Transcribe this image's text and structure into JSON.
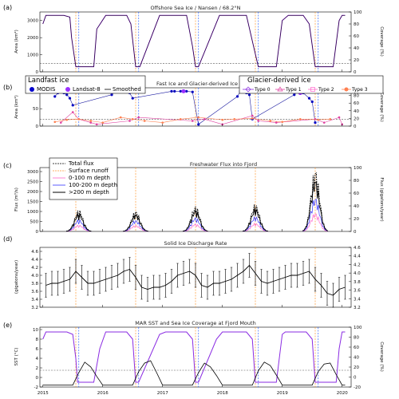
{
  "chart_data": [
    {
      "label": "(a)",
      "title": "Offshore Sea Ice / Nansen / 68.2°N",
      "type": "line",
      "ylabel_left": "Area (km²)",
      "ylabel_right": "Coverage (%)",
      "yticks_left": [
        "0",
        "1000",
        "2000",
        "3000"
      ],
      "yticks_right": [
        "0",
        "20",
        "40",
        "60",
        "80",
        "100"
      ],
      "ylim": [
        0,
        3500
      ],
      "threshold_line": 500,
      "series": [
        {
          "color": "#6a0dad",
          "x": [
            2015.0,
            2015.05,
            2015.35,
            2015.45,
            2015.48,
            2015.55,
            2015.85,
            2015.9,
            2016.05,
            2016.4,
            2016.47,
            2016.55,
            2016.62,
            2016.95,
            2017.05,
            2017.4,
            2017.5,
            2017.55,
            2017.6,
            2017.95,
            2018.05,
            2018.4,
            2018.52,
            2018.6,
            2018.9,
            2019.0,
            2019.1,
            2019.35,
            2019.45,
            2019.55,
            2019.85,
            2019.95,
            2020.0,
            2020.05
          ],
          "values": [
            2800,
            3300,
            3300,
            3200,
            2000,
            300,
            300,
            2500,
            3300,
            3300,
            2800,
            300,
            300,
            3300,
            3300,
            3300,
            1500,
            300,
            300,
            3300,
            3300,
            3300,
            1500,
            300,
            300,
            3000,
            3300,
            3300,
            2800,
            300,
            300,
            3000,
            3300,
            3300
          ]
        }
      ]
    },
    {
      "label": "(b)",
      "title": "Fast Ice and Glacier-derived Ice",
      "type": "scatter",
      "ylabel_left": "Area (km²)",
      "ylabel_right": "Coverage (%)",
      "yticks_left": [
        "0",
        "50",
        "100"
      ],
      "yticks_right": [
        "0",
        "20",
        "40",
        "60",
        "80",
        "100"
      ],
      "ylim": [
        0,
        110
      ],
      "legend_landfast": {
        "title": "Landfast ice",
        "items": [
          "MODIS",
          "Landsat-8",
          "Smoothed"
        ]
      },
      "legend_glacier": {
        "title": "Glacier-derived ice",
        "items": [
          "Type 0",
          "Type 1",
          "Type 2",
          "Type 3"
        ]
      },
      "series": [
        {
          "name": "MODIS",
          "color": "#0000cc",
          "x": [
            2015.2,
            2015.25,
            2015.3,
            2015.35,
            2015.4,
            2015.45,
            2015.5,
            2016.15,
            2016.2,
            2016.3,
            2016.35,
            2016.45,
            2016.5,
            2017.15,
            2017.2,
            2017.3,
            2017.4,
            2017.5,
            2017.6,
            2018.25,
            2018.3,
            2018.4,
            2018.45,
            2018.5,
            2019.2,
            2019.25,
            2019.35,
            2019.45,
            2019.5,
            2019.55
          ],
          "values": [
            85,
            95,
            100,
            95,
            90,
            80,
            60,
            90,
            98,
            100,
            98,
            95,
            80,
            100,
            100,
            100,
            100,
            98,
            5,
            85,
            100,
            95,
            90,
            20,
            90,
            98,
            95,
            80,
            70,
            10
          ]
        },
        {
          "name": "Landsat-8",
          "color": "#9b30ff",
          "x": [
            2015.3,
            2016.3,
            2017.35,
            2018.35,
            2019.3
          ],
          "values": [
            100,
            100,
            100,
            100,
            95
          ]
        },
        {
          "name": "Type 1",
          "color": "#e040a0",
          "x": [
            2015.3,
            2015.5,
            2015.6,
            2015.8,
            2015.9,
            2016.45,
            2016.6,
            2017.5,
            2017.7,
            2018.0,
            2018.5,
            2018.6,
            2018.9,
            2019.55,
            2019.7,
            2019.95,
            2020.0
          ],
          "values": [
            10,
            40,
            20,
            10,
            5,
            15,
            25,
            15,
            20,
            5,
            30,
            15,
            10,
            20,
            10,
            25,
            5
          ]
        },
        {
          "name": "Type 3",
          "color": "#ff7f50",
          "x": [
            2015.2,
            2015.4,
            2015.6,
            2015.8,
            2016.0,
            2016.3,
            2016.5,
            2016.7,
            2017.0,
            2017.3,
            2017.6,
            2018.0,
            2018.2,
            2018.5,
            2018.8,
            2019.0,
            2019.3,
            2019.6,
            2019.8
          ],
          "values": [
            12,
            18,
            20,
            15,
            10,
            25,
            20,
            15,
            10,
            20,
            25,
            18,
            20,
            22,
            15,
            12,
            20,
            18,
            20
          ]
        }
      ]
    },
    {
      "label": "(c)",
      "title": "Freshwater Flux into Fjord",
      "type": "area",
      "ylabel_left": "Flux (m³/s)",
      "ylabel_right": "Flux (gigatons/year)",
      "yticks_left": [
        "0",
        "500",
        "1000",
        "1500",
        "2000",
        "2500",
        "3000"
      ],
      "yticks_right": [
        "0",
        "20",
        "40",
        "60",
        "80",
        "100"
      ],
      "ylim": [
        0,
        3200
      ],
      "legend": [
        "Total flux",
        "Surface runoff",
        "0-100 m depth",
        "100-200 m depth",
        ">200 m depth"
      ],
      "peaks": [
        {
          "center": 2015.6,
          "width": 0.07,
          "height": 1100
        },
        {
          "center": 2016.55,
          "width": 0.07,
          "height": 1050
        },
        {
          "center": 2017.55,
          "width": 0.07,
          "height": 1300
        },
        {
          "center": 2018.55,
          "width": 0.07,
          "height": 1400
        },
        {
          "center": 2019.55,
          "width": 0.07,
          "height": 3200
        }
      ]
    },
    {
      "label": "(d)",
      "title": "Solid Ice Discharge Rate",
      "type": "line",
      "ylabel_left": "(gigatons/year)",
      "yticks_left": [
        "3.2",
        "3.4",
        "3.6",
        "3.8",
        "4.0",
        "4.2",
        "4.4",
        "4.6"
      ],
      "yticks_right": [
        "3.2",
        "3.4",
        "3.6",
        "3.8",
        "4.0",
        "4.2",
        "4.4",
        "4.6"
      ],
      "ylim": [
        3.2,
        4.7
      ],
      "series": [
        {
          "color": "#000000",
          "error": 0.3,
          "x": [
            2015.05,
            2015.15,
            2015.25,
            2015.35,
            2015.45,
            2015.55,
            2015.65,
            2015.75,
            2015.85,
            2015.95,
            2016.05,
            2016.15,
            2016.25,
            2016.35,
            2016.45,
            2016.55,
            2016.65,
            2016.75,
            2016.85,
            2016.95,
            2017.05,
            2017.15,
            2017.25,
            2017.35,
            2017.45,
            2017.55,
            2017.65,
            2017.75,
            2017.85,
            2017.95,
            2018.05,
            2018.15,
            2018.25,
            2018.35,
            2018.45,
            2018.55,
            2018.65,
            2018.75,
            2018.85,
            2018.95,
            2019.05,
            2019.15,
            2019.25,
            2019.35,
            2019.45,
            2019.55,
            2019.65,
            2019.75,
            2019.85,
            2019.95,
            2020.05
          ],
          "values": [
            3.75,
            3.8,
            3.8,
            3.85,
            3.9,
            4.1,
            3.95,
            3.8,
            3.8,
            3.85,
            3.9,
            3.95,
            4.0,
            4.1,
            4.15,
            3.95,
            3.7,
            3.65,
            3.7,
            3.7,
            3.75,
            3.85,
            4.0,
            4.05,
            4.1,
            4.0,
            3.75,
            3.7,
            3.8,
            3.8,
            3.85,
            3.9,
            4.0,
            4.1,
            4.25,
            4.05,
            3.85,
            3.8,
            3.85,
            3.9,
            3.95,
            4.0,
            4.0,
            4.05,
            4.1,
            3.9,
            3.75,
            3.55,
            3.5,
            3.65,
            3.7
          ]
        }
      ]
    },
    {
      "label": "(e)",
      "title": "MAR SST and Sea Ice Coverage at Fjord Mouth",
      "type": "line",
      "ylabel_left": "SST (°C)",
      "ylabel_right": "Coverage (%)",
      "yticks_left": [
        "-2",
        "0",
        "2",
        "4",
        "6",
        "8",
        "10"
      ],
      "yticks_right": [
        "-20",
        "0",
        "20",
        "40",
        "60",
        "80",
        "100"
      ],
      "ylim": [
        -2,
        10.5
      ],
      "series": [
        {
          "name": "Sea ice coverage",
          "color": "#8a2be2",
          "x": [
            2015.0,
            2015.05,
            2015.4,
            2015.5,
            2015.55,
            2015.58,
            2015.85,
            2015.95,
            2016.05,
            2016.4,
            2016.5,
            2016.55,
            2016.6,
            2016.95,
            2017.05,
            2017.4,
            2017.5,
            2017.55,
            2017.6,
            2017.9,
            2018.0,
            2018.05,
            2018.4,
            2018.5,
            2018.55,
            2018.9,
            2019.0,
            2019.05,
            2019.4,
            2019.5,
            2019.55,
            2019.9,
            2019.95,
            2020.0,
            2020.05
          ],
          "values": [
            8,
            9.5,
            9.5,
            9,
            4,
            -1,
            -1,
            6,
            9.5,
            9.5,
            8,
            -1,
            -1,
            9,
            9.5,
            9.5,
            8,
            -1,
            -1,
            8,
            9.5,
            9.5,
            9.5,
            8,
            -1,
            -1,
            9,
            9.5,
            9.5,
            8,
            -1,
            -1,
            6,
            9.5,
            9.5
          ]
        },
        {
          "name": "SST",
          "color": "#000000",
          "x": [
            2015.0,
            2015.5,
            2015.6,
            2015.7,
            2015.8,
            2015.9,
            2016.0,
            2016.5,
            2016.6,
            2016.7,
            2016.8,
            2016.9,
            2017.0,
            2017.5,
            2017.6,
            2017.7,
            2017.8,
            2017.9,
            2018.0,
            2018.5,
            2018.6,
            2018.7,
            2018.8,
            2018.9,
            2019.0,
            2019.5,
            2019.6,
            2019.7,
            2019.8,
            2019.9,
            2020.0,
            2020.05
          ],
          "values": [
            -1.6,
            -1.6,
            1.0,
            3.2,
            2.2,
            0.2,
            -1.6,
            -1.6,
            1.2,
            3.0,
            3.5,
            1.0,
            -1.6,
            -1.6,
            1.0,
            3.0,
            2.2,
            0.4,
            -1.6,
            -1.6,
            1.4,
            3.2,
            2.5,
            0.5,
            -1.6,
            -1.6,
            1.2,
            2.8,
            3.0,
            0.6,
            -1.6,
            -1.6
          ]
        }
      ]
    }
  ],
  "shared_x": {
    "ticks": [
      "2015",
      "2016",
      "2017",
      "2018",
      "2019",
      "2020"
    ],
    "xlim": [
      2014.95,
      2020.15
    ]
  },
  "vlines": {
    "orange": [
      2015.55,
      2016.55,
      2017.55,
      2018.55,
      2019.55
    ],
    "blue": [
      2015.6,
      2016.6,
      2017.6,
      2018.6,
      2019.6
    ]
  },
  "colors": {
    "orange": "#ff9933",
    "blue": "#3366ff",
    "purple": "#8a2be2",
    "pink": "#ff66cc",
    "coral": "#ff7f50"
  }
}
